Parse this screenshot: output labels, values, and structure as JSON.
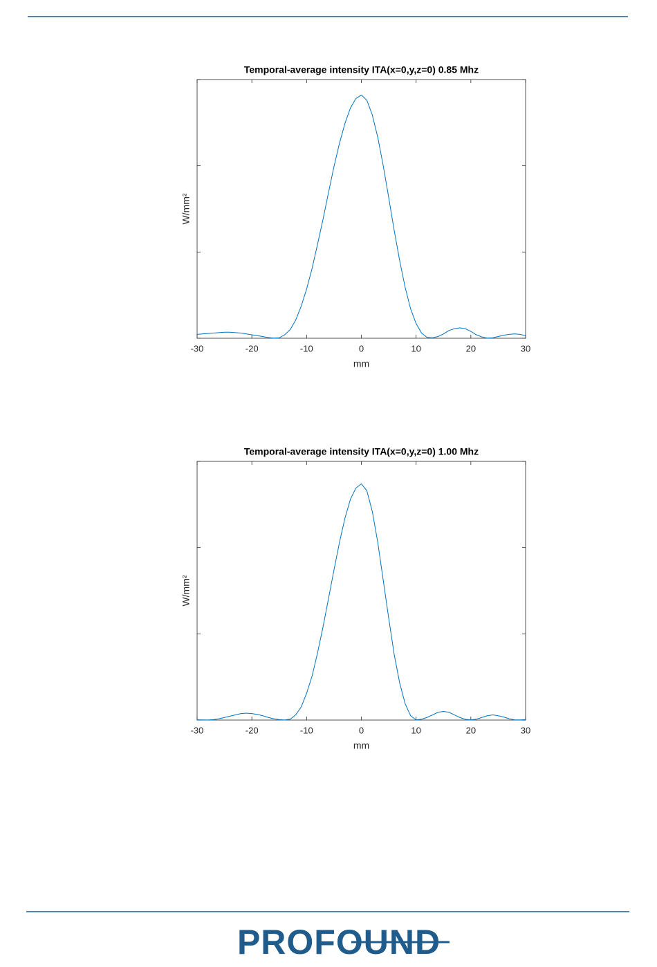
{
  "chart_data": [
    {
      "type": "line",
      "title": "Temporal-average intensity ITA(x=0,y,z=0) 0.85 Mhz",
      "x_label": "mm",
      "y_label": "W/mm²",
      "x": [
        -30,
        -29,
        -28,
        -27,
        -26,
        -25,
        -24,
        -23,
        -22,
        -21,
        -20,
        -19,
        -18,
        -17,
        -16,
        -15,
        -14,
        -13,
        -12,
        -11,
        -10,
        -9,
        -8,
        -7,
        -6,
        -5,
        -4,
        -3,
        -2,
        -1,
        0,
        1,
        2,
        3,
        4,
        5,
        6,
        7,
        8,
        9,
        10,
        11,
        12,
        13,
        14,
        15,
        16,
        17,
        18,
        19,
        20,
        21,
        22,
        23,
        24,
        25,
        26,
        27,
        28,
        29,
        30
      ],
      "series": [
        {
          "color": "#0072bd",
          "values": [
            0.045,
            0.05,
            0.055,
            0.06,
            0.065,
            0.07,
            0.07,
            0.065,
            0.06,
            0.05,
            0.04,
            0.03,
            0.02,
            0.008,
            0.002,
            0.005,
            0.04,
            0.1,
            0.21,
            0.37,
            0.57,
            0.81,
            1.09,
            1.38,
            1.69,
            1.99,
            2.26,
            2.49,
            2.67,
            2.78,
            2.82,
            2.76,
            2.59,
            2.33,
            2.0,
            1.63,
            1.25,
            0.9,
            0.59,
            0.34,
            0.17,
            0.06,
            0.01,
            0.005,
            0.02,
            0.05,
            0.09,
            0.11,
            0.12,
            0.11,
            0.08,
            0.04,
            0.015,
            0.002,
            0.005,
            0.02,
            0.035,
            0.045,
            0.05,
            0.045,
            0.03
          ]
        }
      ],
      "xlim": [
        -30,
        30
      ],
      "xticks": [
        -30,
        -20,
        -10,
        0,
        10,
        20,
        30
      ],
      "ylim": [
        0,
        3
      ],
      "yticks": [
        0,
        1,
        2,
        3
      ],
      "ytick_labels": false
    },
    {
      "type": "line",
      "title": "Temporal-average intensity ITA(x=0,y,z=0) 1.00 Mhz",
      "x_label": "mm",
      "y_label": "W/mm²",
      "x": [
        -30,
        -29,
        -28,
        -27,
        -26,
        -25,
        -24,
        -23,
        -22,
        -21,
        -20,
        -19,
        -18,
        -17,
        -16,
        -15,
        -14,
        -13,
        -12,
        -11,
        -10,
        -9,
        -8,
        -7,
        -6,
        -5,
        -4,
        -3,
        -2,
        -1,
        0,
        1,
        2,
        3,
        4,
        5,
        6,
        7,
        8,
        9,
        10,
        11,
        12,
        13,
        14,
        15,
        16,
        17,
        18,
        19,
        20,
        21,
        22,
        23,
        24,
        25,
        26,
        27,
        28,
        29,
        30
      ],
      "series": [
        {
          "color": "#0072bd",
          "values": [
            0.003,
            0.002,
            0.001,
            0.005,
            0.015,
            0.03,
            0.045,
            0.06,
            0.075,
            0.08,
            0.075,
            0.065,
            0.05,
            0.03,
            0.015,
            0.005,
            0.001,
            0.01,
            0.06,
            0.15,
            0.31,
            0.51,
            0.78,
            1.08,
            1.41,
            1.74,
            2.06,
            2.34,
            2.56,
            2.69,
            2.74,
            2.66,
            2.42,
            2.06,
            1.62,
            1.18,
            0.76,
            0.43,
            0.19,
            0.05,
            0.002,
            0.01,
            0.03,
            0.06,
            0.09,
            0.1,
            0.09,
            0.06,
            0.03,
            0.008,
            0.002,
            0.01,
            0.03,
            0.05,
            0.06,
            0.05,
            0.035,
            0.015,
            0.003,
            0.002,
            0.005
          ]
        }
      ],
      "xlim": [
        -30,
        30
      ],
      "xticks": [
        -30,
        -20,
        -10,
        0,
        10,
        20,
        30
      ],
      "ylim": [
        0,
        3
      ],
      "yticks": [
        0,
        1,
        2,
        3
      ],
      "ytick_labels": false
    }
  ],
  "footer": {
    "logo": "PROFOUND"
  }
}
